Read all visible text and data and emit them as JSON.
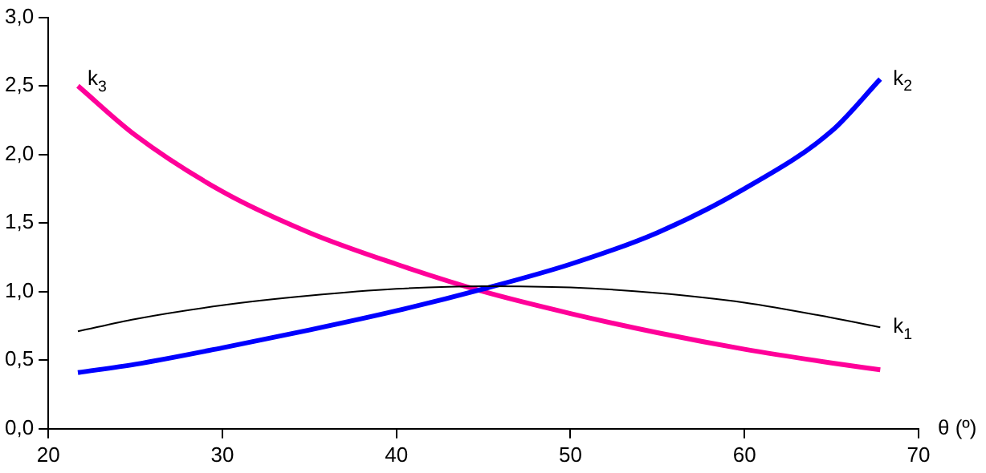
{
  "chart_data": {
    "type": "line",
    "xlabel": "θ (º)",
    "x": [
      21.7,
      25,
      30,
      35,
      40,
      45,
      50,
      55,
      60,
      65,
      67.8
    ],
    "series": [
      {
        "name": "k$_{1}$",
        "color": "#000000",
        "values": [
          0.71,
          0.8,
          0.9,
          0.97,
          1.02,
          1.04,
          1.03,
          0.99,
          0.92,
          0.81,
          0.74
        ]
      },
      {
        "name": "k$_{2}$",
        "color": "#0000ff",
        "values": [
          0.41,
          0.47,
          0.59,
          0.72,
          0.86,
          1.02,
          1.2,
          1.43,
          1.75,
          2.17,
          2.55
        ]
      },
      {
        "name": "k$_{3}$",
        "color": "#ff0099",
        "values": [
          2.5,
          2.14,
          1.73,
          1.43,
          1.2,
          1.0,
          0.84,
          0.7,
          0.58,
          0.48,
          0.43
        ]
      }
    ],
    "xlim": [
      20,
      70
    ],
    "xticks": [
      20,
      30,
      40,
      50,
      60,
      70
    ],
    "ylim": [
      0,
      3
    ],
    "yticks": [
      {
        "value": 0,
        "label": "0,0"
      },
      {
        "value": 0.5,
        "label": "0,5"
      },
      {
        "value": 1,
        "label": "1,0"
      },
      {
        "value": 1.5,
        "label": "1,5"
      },
      {
        "value": 2,
        "label": "2,0"
      },
      {
        "value": 2.5,
        "label": "2,5"
      },
      {
        "value": 3,
        "label": "3,0"
      }
    ],
    "grid": false,
    "legend": false,
    "marker": "none",
    "line_style": "solid"
  }
}
